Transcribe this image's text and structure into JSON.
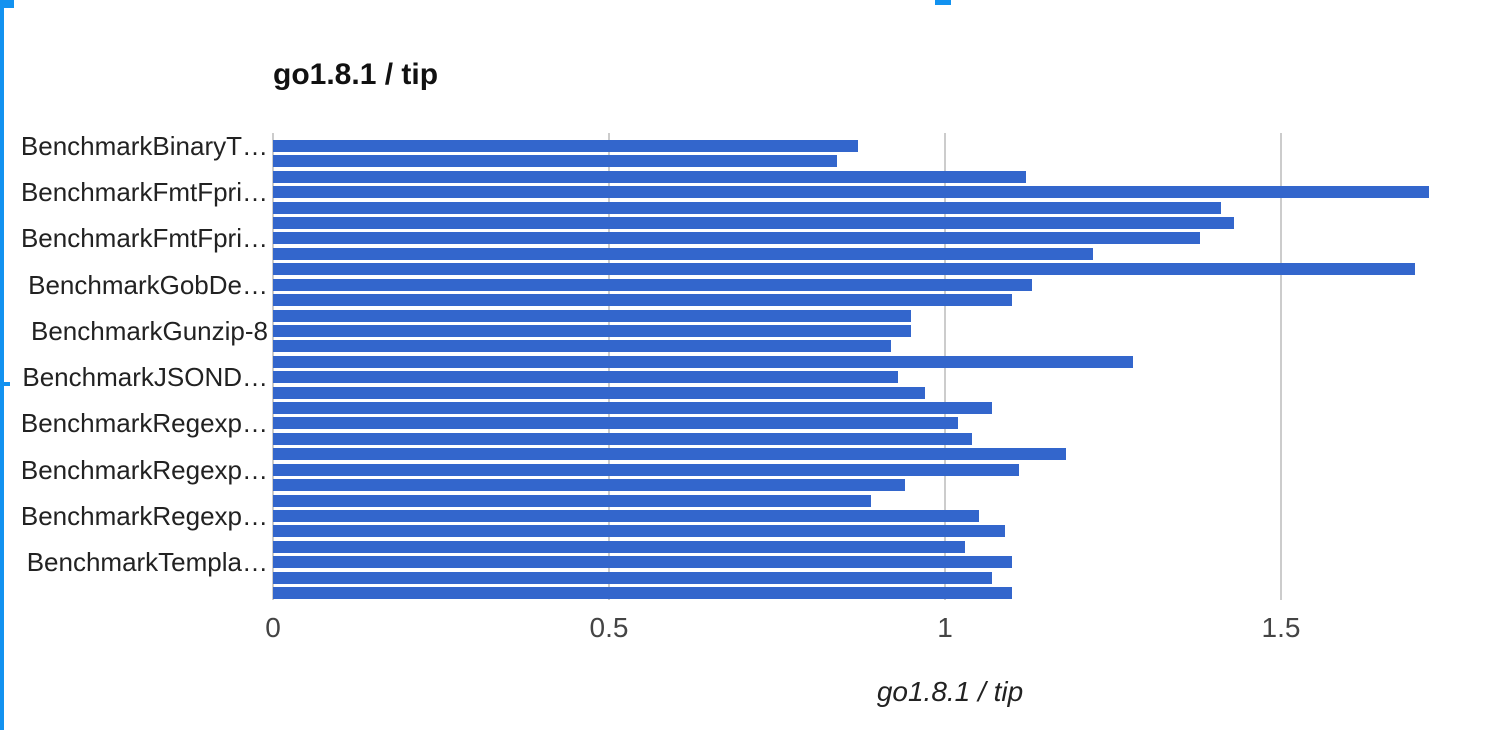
{
  "page": {
    "background": "#ffffff"
  },
  "decorations": {
    "selection_blue": "#1292F0",
    "left_edge_line": "screenshot-selection-edge",
    "top_left_square": "screenshot-selection-corner",
    "top_center_fragment": "clipped-blue-artifact"
  },
  "chart_data": {
    "type": "bar",
    "orientation": "horizontal",
    "title": "go1.8.1 / tip",
    "xlabel": "go1.8.1 / tip",
    "ylabel": "",
    "x_ticks": [
      "0",
      "0.5",
      "1",
      "1.5"
    ],
    "x_tick_values": [
      0,
      0.5,
      1,
      1.5
    ],
    "xlim": [
      0,
      1.81
    ],
    "grid": true,
    "legend": "none",
    "bar_color": "#3366CC",
    "gridline_color": "#cccccc",
    "rows": [
      {
        "label": "BenchmarkBinaryT…",
        "value": 0.87
      },
      {
        "label": "",
        "value": 0.84
      },
      {
        "label": "",
        "value": 1.12
      },
      {
        "label": "BenchmarkFmtFpri…",
        "value": 1.72
      },
      {
        "label": "",
        "value": 1.41
      },
      {
        "label": "",
        "value": 1.43
      },
      {
        "label": "BenchmarkFmtFpri…",
        "value": 1.38
      },
      {
        "label": "",
        "value": 1.22
      },
      {
        "label": "",
        "value": 1.7
      },
      {
        "label": "BenchmarkGobDe…",
        "value": 1.13
      },
      {
        "label": "",
        "value": 1.1
      },
      {
        "label": "",
        "value": 0.95
      },
      {
        "label": "BenchmarkGunzip-8",
        "value": 0.95
      },
      {
        "label": "",
        "value": 0.92
      },
      {
        "label": "",
        "value": 1.28
      },
      {
        "label": "BenchmarkJSOND…",
        "value": 0.93
      },
      {
        "label": "",
        "value": 0.97
      },
      {
        "label": "",
        "value": 1.07
      },
      {
        "label": "BenchmarkRegexp…",
        "value": 1.02
      },
      {
        "label": "",
        "value": 1.04
      },
      {
        "label": "",
        "value": 1.18
      },
      {
        "label": "BenchmarkRegexp…",
        "value": 1.11
      },
      {
        "label": "",
        "value": 0.94
      },
      {
        "label": "",
        "value": 0.89
      },
      {
        "label": "BenchmarkRegexp…",
        "value": 1.05
      },
      {
        "label": "",
        "value": 1.09
      },
      {
        "label": "",
        "value": 1.03
      },
      {
        "label": "BenchmarkTempla…",
        "value": 1.1
      },
      {
        "label": "",
        "value": 1.07
      },
      {
        "label": "",
        "value": 1.1
      }
    ]
  }
}
